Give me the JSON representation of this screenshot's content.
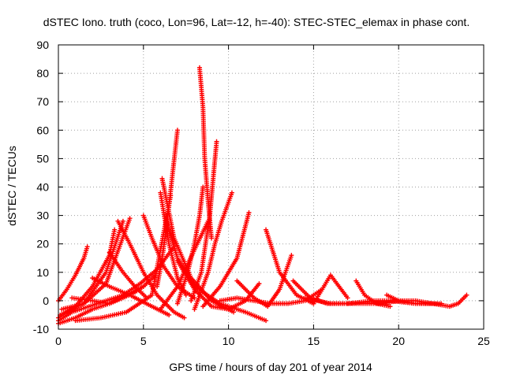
{
  "chart_data": {
    "type": "scatter",
    "title": "dSTEC Iono. truth (coco, Lon=96, Lat=-12, h=-40): STEC-STEC_elemax in phase cont.",
    "xlabel": "GPS time / hours of day 201 of year 2014",
    "ylabel": "dSTEC  / TECUs",
    "xlim": [
      0,
      25
    ],
    "ylim": [
      -10,
      90
    ],
    "xticks": [
      0,
      5,
      10,
      15,
      20,
      25
    ],
    "yticks": [
      -10,
      0,
      10,
      20,
      30,
      40,
      50,
      60,
      70,
      80,
      90
    ],
    "grid": true,
    "marker": "+",
    "color": "#ff0000",
    "series": [
      {
        "x": [
          0.0,
          0.5,
          1.0,
          1.5,
          1.7
        ],
        "y": [
          0,
          4,
          9,
          15,
          19
        ]
      },
      {
        "x": [
          0.0,
          1.0,
          2.0,
          3.0,
          3.3
        ],
        "y": [
          -6,
          -2,
          5,
          16,
          25
        ]
      },
      {
        "x": [
          0.1,
          1.5,
          2.8,
          3.8
        ],
        "y": [
          -5,
          -1,
          10,
          28
        ]
      },
      {
        "x": [
          0.2,
          1.5,
          2.8,
          4.2
        ],
        "y": [
          -3,
          -1,
          6,
          29
        ]
      },
      {
        "x": [
          0.0,
          1.0,
          2.0,
          3.0,
          4.0,
          5.0,
          5.7
        ],
        "y": [
          -8,
          -6,
          -3,
          -1,
          2,
          5,
          9
        ]
      },
      {
        "x": [
          0.0,
          0.8,
          1.8,
          2.8,
          3.8,
          4.8,
          5.8,
          6.8
        ],
        "y": [
          -7,
          -4,
          -2,
          0,
          2,
          6,
          11,
          19
        ]
      },
      {
        "x": [
          1.0,
          2.5,
          4.0,
          5.5,
          6.6
        ],
        "y": [
          -7,
          -6,
          -4,
          2,
          37
        ]
      },
      {
        "x": [
          0.8,
          2.0,
          3.0,
          3.8,
          4.5,
          5.0
        ],
        "y": [
          1,
          0,
          -1,
          1,
          3,
          5
        ]
      },
      {
        "x": [
          2.0,
          3.0,
          4.2,
          5.5,
          6.5
        ],
        "y": [
          8,
          5,
          2,
          -2,
          -5
        ]
      },
      {
        "x": [
          3.0,
          3.8,
          4.5,
          5.2
        ],
        "y": [
          17,
          10,
          5,
          1
        ]
      },
      {
        "x": [
          3.5,
          4.2,
          5.0,
          5.8,
          6.8,
          7.4
        ],
        "y": [
          28,
          20,
          10,
          2,
          -4,
          -6
        ]
      },
      {
        "x": [
          5.0,
          5.5,
          6.2,
          7.0,
          8.0
        ],
        "y": [
          30,
          22,
          12,
          5,
          1
        ]
      },
      {
        "x": [
          5.8,
          6.1,
          6.4,
          6.7,
          7.0
        ],
        "y": [
          5,
          15,
          28,
          44,
          60
        ]
      },
      {
        "x": [
          6.0,
          6.5,
          7.0,
          7.5
        ],
        "y": [
          38,
          20,
          8,
          2
        ]
      },
      {
        "x": [
          6.1,
          6.8,
          7.8,
          9.0,
          10.3
        ],
        "y": [
          43,
          22,
          8,
          0,
          -4
        ]
      },
      {
        "x": [
          6.3,
          7.0,
          8.0,
          9.5,
          11.0,
          12.2
        ],
        "y": [
          29,
          15,
          5,
          -1,
          -4,
          -7
        ]
      },
      {
        "x": [
          6.0,
          7.0,
          8.0,
          8.8
        ],
        "y": [
          -3,
          5,
          18,
          28
        ]
      },
      {
        "x": [
          7.0,
          7.6,
          8.0,
          8.3,
          8.5
        ],
        "y": [
          -1,
          10,
          20,
          30,
          40
        ]
      },
      {
        "x": [
          8.3,
          8.5,
          8.6,
          8.8,
          9.0
        ],
        "y": [
          82,
          68,
          50,
          35,
          22
        ]
      },
      {
        "x": [
          7.8,
          8.4,
          8.9,
          9.3
        ],
        "y": [
          0,
          10,
          30,
          56
        ]
      },
      {
        "x": [
          8.0,
          8.8,
          9.2,
          9.6,
          10.2
        ],
        "y": [
          -3,
          10,
          20,
          28,
          38
        ]
      },
      {
        "x": [
          8.5,
          9.5,
          10.5,
          11.2
        ],
        "y": [
          -2,
          5,
          15,
          31
        ]
      },
      {
        "x": [
          7.0,
          8.0,
          9.0,
          10.0,
          11.0,
          11.8
        ],
        "y": [
          14,
          4,
          -2,
          -3,
          0,
          6
        ]
      },
      {
        "x": [
          10.5,
          11.5,
          12.3,
          13.0,
          13.7
        ],
        "y": [
          7,
          1,
          -2,
          4,
          16
        ]
      },
      {
        "x": [
          9.5,
          10.5,
          11.5,
          12.5,
          13.5,
          14.5,
          15.5
        ],
        "y": [
          0,
          1,
          0,
          -1,
          -1,
          0,
          4
        ]
      },
      {
        "x": [
          12.2,
          13.0,
          14.0,
          15.0
        ],
        "y": [
          25,
          10,
          2,
          -1
        ]
      },
      {
        "x": [
          13.8,
          14.8,
          15.8,
          16.8
        ],
        "y": [
          7,
          1,
          -1,
          -1
        ]
      },
      {
        "x": [
          15.0,
          15.5,
          16.0,
          17.0
        ],
        "y": [
          -1,
          4,
          9,
          1
        ]
      },
      {
        "x": [
          14.5,
          16.0,
          17.5,
          19.0,
          20.0
        ],
        "y": [
          1,
          -1,
          -1,
          -1,
          0
        ]
      },
      {
        "x": [
          17.5,
          18.0,
          18.7,
          19.5
        ],
        "y": [
          7,
          2,
          -1,
          -2
        ]
      },
      {
        "x": [
          17.0,
          18.5,
          19.5,
          21.0,
          22.5
        ],
        "y": [
          -1,
          0,
          0,
          -1,
          -1
        ]
      },
      {
        "x": [
          19.3,
          20.0,
          21.0,
          22.0
        ],
        "y": [
          2,
          0,
          -1,
          -1
        ]
      },
      {
        "x": [
          20.0,
          21.0,
          22.0,
          23.0,
          23.5,
          24.0
        ],
        "y": [
          0,
          0,
          -1,
          -2,
          -1,
          2
        ]
      }
    ]
  }
}
